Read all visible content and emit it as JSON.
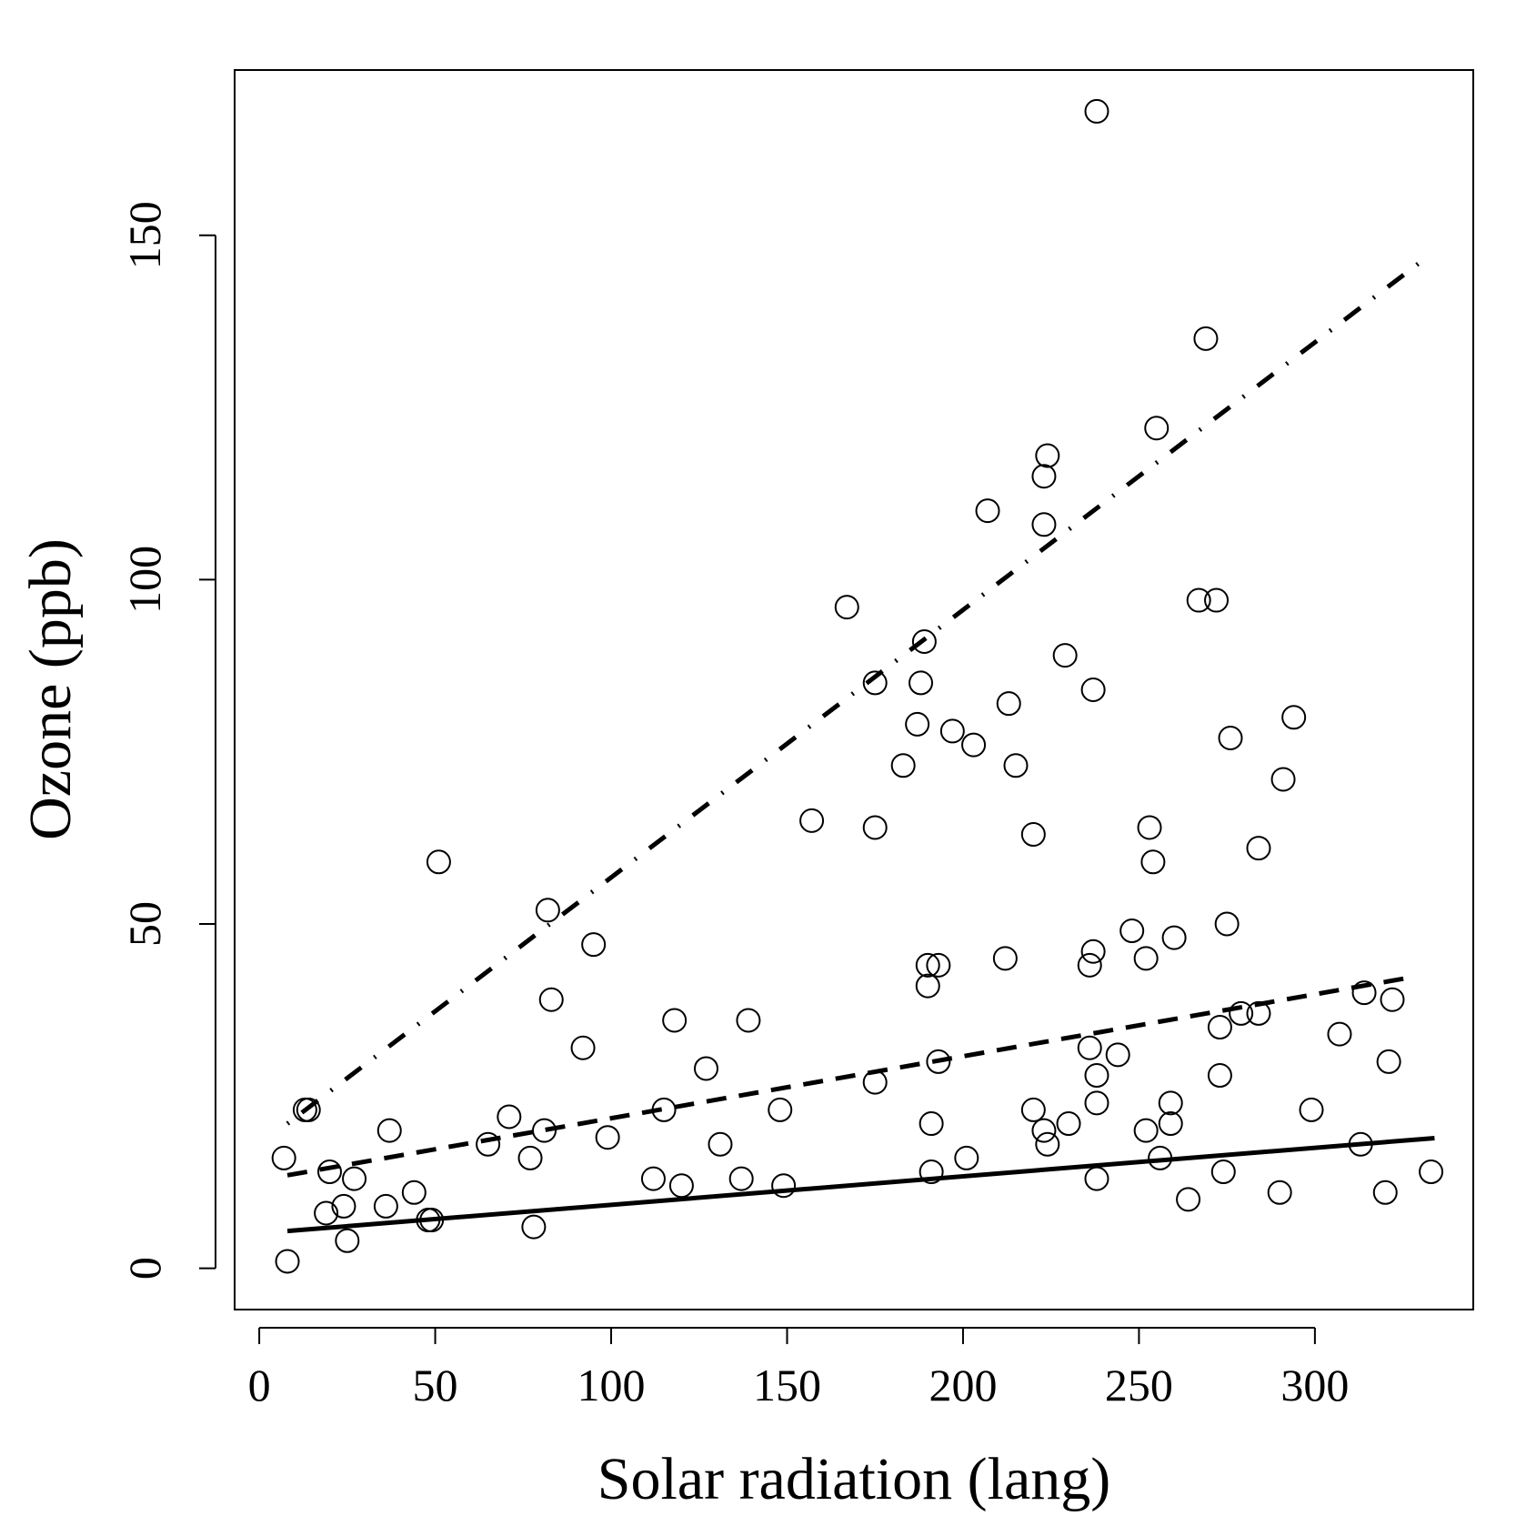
{
  "chart_data": {
    "type": "scatter",
    "title": "",
    "xlabel": "Solar radiation (lang)",
    "ylabel": "Ozone (ppb)",
    "xlim": [
      -7,
      345
    ],
    "ylim": [
      -6,
      174
    ],
    "xticks": [
      0,
      50,
      100,
      150,
      200,
      250,
      300
    ],
    "yticks": [
      0,
      50,
      100,
      150
    ],
    "grid": false,
    "points": [
      [
        238,
        168
      ],
      [
        269,
        135
      ],
      [
        255,
        122
      ],
      [
        224,
        118
      ],
      [
        223,
        115
      ],
      [
        207,
        110
      ],
      [
        223,
        108
      ],
      [
        167,
        96
      ],
      [
        267,
        97
      ],
      [
        272,
        97
      ],
      [
        189,
        91
      ],
      [
        229,
        89
      ],
      [
        175,
        85
      ],
      [
        188,
        85
      ],
      [
        237,
        84
      ],
      [
        213,
        82
      ],
      [
        187,
        79
      ],
      [
        197,
        78
      ],
      [
        294,
        80
      ],
      [
        203,
        76
      ],
      [
        276,
        77
      ],
      [
        183,
        73
      ],
      [
        215,
        73
      ],
      [
        291,
        71
      ],
      [
        157,
        65
      ],
      [
        175,
        64
      ],
      [
        253,
        64
      ],
      [
        220,
        63
      ],
      [
        284,
        61
      ],
      [
        51,
        59
      ],
      [
        254,
        59
      ],
      [
        82,
        52
      ],
      [
        275,
        50
      ],
      [
        95,
        47
      ],
      [
        248,
        49
      ],
      [
        260,
        48
      ],
      [
        237,
        46
      ],
      [
        212,
        45
      ],
      [
        252,
        45
      ],
      [
        190,
        44
      ],
      [
        193,
        44
      ],
      [
        236,
        44
      ],
      [
        190,
        41
      ],
      [
        314,
        40
      ],
      [
        83,
        39
      ],
      [
        322,
        39
      ],
      [
        279,
        37
      ],
      [
        284,
        37
      ],
      [
        118,
        36
      ],
      [
        139,
        36
      ],
      [
        273,
        35
      ],
      [
        307,
        34
      ],
      [
        92,
        32
      ],
      [
        236,
        32
      ],
      [
        244,
        31
      ],
      [
        193,
        30
      ],
      [
        321,
        30
      ],
      [
        127,
        29
      ],
      [
        238,
        28
      ],
      [
        273,
        28
      ],
      [
        175,
        27
      ],
      [
        14,
        23
      ],
      [
        13,
        23
      ],
      [
        115,
        23
      ],
      [
        148,
        23
      ],
      [
        220,
        23
      ],
      [
        299,
        23
      ],
      [
        71,
        22
      ],
      [
        191,
        21
      ],
      [
        230,
        21
      ],
      [
        259,
        21
      ],
      [
        259,
        24
      ],
      [
        238,
        24
      ],
      [
        37,
        20
      ],
      [
        81,
        20
      ],
      [
        223,
        20
      ],
      [
        252,
        20
      ],
      [
        99,
        19
      ],
      [
        65,
        18
      ],
      [
        131,
        18
      ],
      [
        224,
        18
      ],
      [
        313,
        18
      ],
      [
        7,
        16
      ],
      [
        77,
        16
      ],
      [
        201,
        16
      ],
      [
        256,
        16
      ],
      [
        20,
        14
      ],
      [
        191,
        14
      ],
      [
        274,
        14
      ],
      [
        333,
        14
      ],
      [
        27,
        13
      ],
      [
        112,
        13
      ],
      [
        137,
        13
      ],
      [
        238,
        13
      ],
      [
        120,
        12
      ],
      [
        149,
        12
      ],
      [
        44,
        11
      ],
      [
        290,
        11
      ],
      [
        320,
        11
      ],
      [
        264,
        10
      ],
      [
        24,
        9
      ],
      [
        36,
        9
      ],
      [
        19,
        8
      ],
      [
        48,
        7
      ],
      [
        49,
        7
      ],
      [
        78,
        6
      ],
      [
        25,
        4
      ],
      [
        8,
        1
      ]
    ],
    "series": [
      {
        "name": "solid line",
        "style": "solid",
        "x": [
          8,
          334
        ],
        "y": [
          5.4,
          18.9
        ]
      },
      {
        "name": "dashed line",
        "style": "dashed",
        "x": [
          8,
          328
        ],
        "y": [
          13.5,
          42.3
        ]
      },
      {
        "name": "dot-dash line",
        "style": "dotdash",
        "x": [
          8,
          331
        ],
        "y": [
          21.0,
          146.5
        ]
      }
    ]
  }
}
